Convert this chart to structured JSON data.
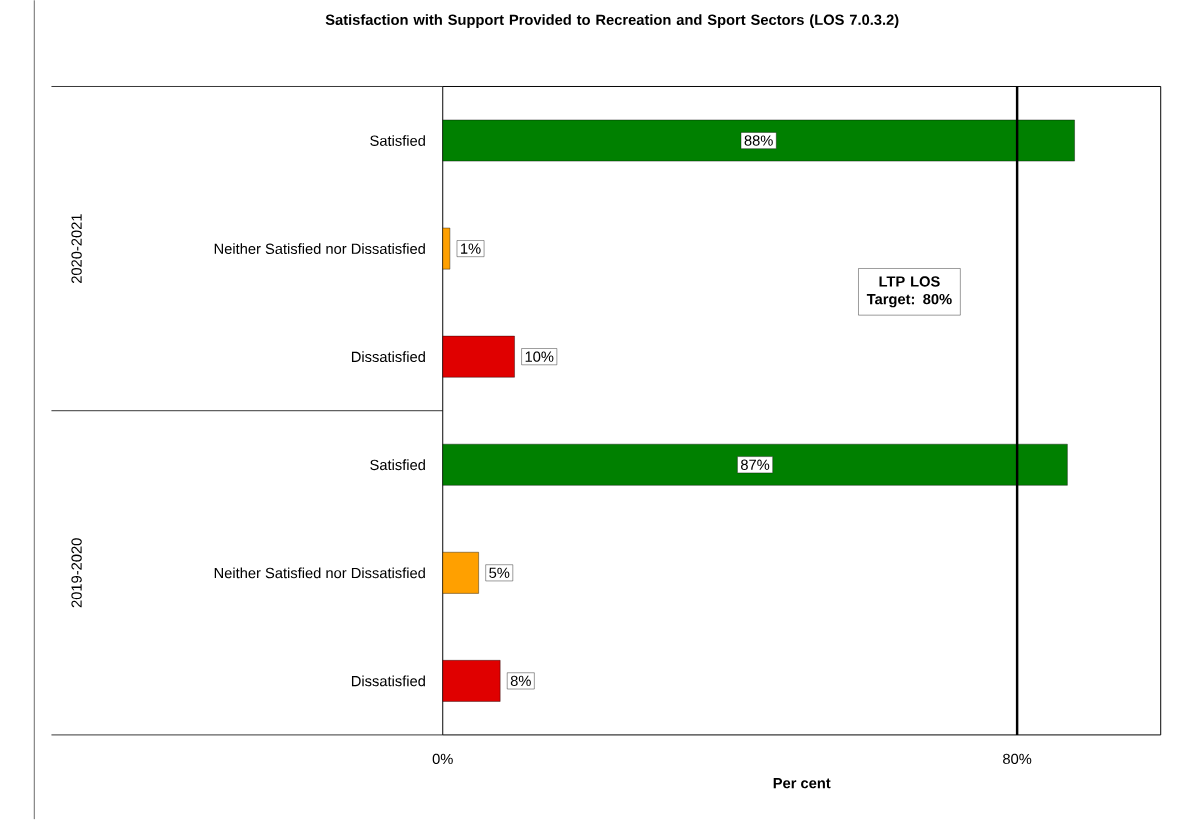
{
  "chart_data": {
    "type": "bar",
    "orientation": "horizontal",
    "title": "Satisfaction with Support Provided to Recreation and Sport Sectors (LOS 7.0.3.2)",
    "xlabel": "Per cent",
    "categories": [
      "Satisfied",
      "Neither Satisfied nor Dissatisfied",
      "Dissatisfied",
      "Satisfied",
      "Neither Satisfied nor Dissatisfied",
      "Dissatisfied"
    ],
    "values": [
      88,
      1,
      10,
      87,
      5,
      8
    ],
    "value_labels": [
      "88%",
      "1%",
      "10%",
      "87%",
      "5%",
      "8%"
    ],
    "colors": [
      "#008000",
      "#ffa000",
      "#e00000",
      "#008000",
      "#ffa000",
      "#e00000"
    ],
    "xlim": [
      0,
      100
    ],
    "xticks": [
      {
        "value": 0,
        "label": "0%"
      },
      {
        "value": 80,
        "label": "80%"
      }
    ],
    "ref_lines": [
      {
        "axis": "x",
        "value": 80,
        "label": "LTP LOS Target: 80%",
        "color": "#000000"
      }
    ],
    "annotations": [
      "2020-2021",
      "2019-2020"
    ]
  }
}
